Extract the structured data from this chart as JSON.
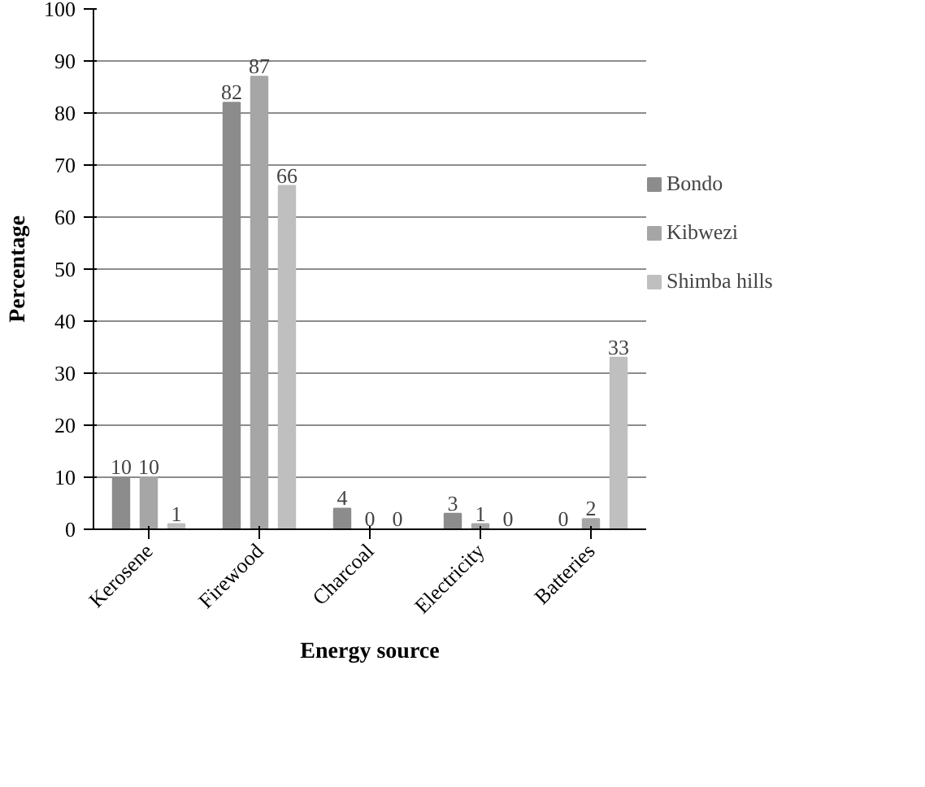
{
  "chart_data": {
    "type": "bar",
    "xlabel": "Energy source",
    "ylabel": "Percentage",
    "categories": [
      "Kerosene",
      "Firewood",
      "Charcoal",
      "Electricity",
      "Batteries"
    ],
    "series": [
      {
        "name": "Bondo",
        "color": "#8c8c8c",
        "values": [
          10,
          82,
          4,
          3,
          0
        ]
      },
      {
        "name": "Kibwezi",
        "color": "#a6a6a6",
        "values": [
          10,
          87,
          0,
          1,
          2
        ]
      },
      {
        "name": "Shimba hills",
        "color": "#bfbfbf",
        "values": [
          1,
          66,
          0,
          0,
          33
        ]
      }
    ],
    "ylim": [
      0,
      100
    ],
    "yticks": [
      0,
      10,
      20,
      30,
      40,
      50,
      60,
      70,
      80,
      90,
      100
    ],
    "grid": "y",
    "legend": "right",
    "data_labels": true
  }
}
